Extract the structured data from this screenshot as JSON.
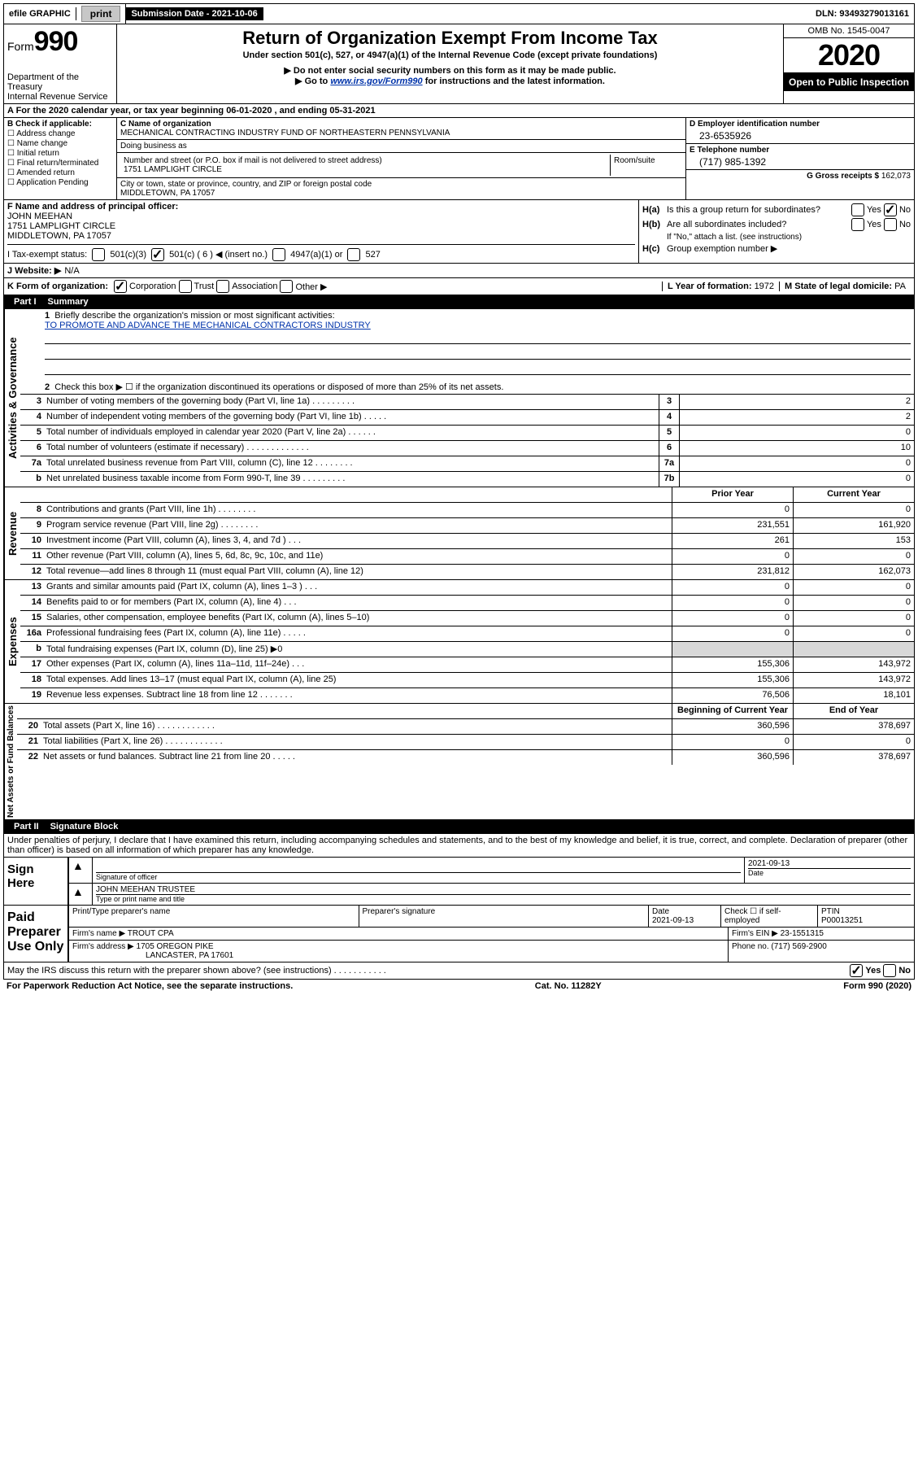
{
  "topbar": {
    "efile_label": "efile GRAPHIC",
    "print_btn": "print",
    "sub_date_label": "Submission Date - 2021-10-06",
    "dln": "DLN: 93493279013161"
  },
  "header": {
    "form_label": "Form",
    "form_num": "990",
    "dept": "Department of the Treasury",
    "irs": "Internal Revenue Service",
    "title": "Return of Organization Exempt From Income Tax",
    "subtitle": "Under section 501(c), 527, or 4947(a)(1) of the Internal Revenue Code (except private foundations)",
    "note1": "▶ Do not enter social security numbers on this form as it may be made public.",
    "note2_pre": "▶ Go to ",
    "note2_link": "www.irs.gov/Form990",
    "note2_post": " for instructions and the latest information.",
    "omb": "OMB No. 1545-0047",
    "year": "2020",
    "open": "Open to Public Inspection"
  },
  "row_a": "A For the 2020 calendar year, or tax year beginning 06-01-2020    , and ending 05-31-2021",
  "b": {
    "label": "B Check if applicable:",
    "addr_change": "Address change",
    "name_change": "Name change",
    "initial": "Initial return",
    "final": "Final return/terminated",
    "amended": "Amended return",
    "app_pending": "Application Pending"
  },
  "c": {
    "name_lbl": "C Name of organization",
    "name": "MECHANICAL CONTRACTING INDUSTRY FUND OF NORTHEASTERN PENNSYLVANIA",
    "dba_lbl": "Doing business as",
    "street_lbl": "Number and street (or P.O. box if mail is not delivered to street address)",
    "room_lbl": "Room/suite",
    "street": "1751 LAMPLIGHT CIRCLE",
    "city_lbl": "City or town, state or province, country, and ZIP or foreign postal code",
    "city": "MIDDLETOWN, PA  17057"
  },
  "d": {
    "ein_lbl": "D Employer identification number",
    "ein": "23-6535926",
    "tel_lbl": "E Telephone number",
    "tel": "(717) 985-1392",
    "gross_lbl": "G Gross receipts $",
    "gross": "162,073"
  },
  "f": {
    "lbl": "F  Name and address of principal officer:",
    "name": "JOHN MEEHAN",
    "street": "1751 LAMPLIGHT CIRCLE",
    "city": "MIDDLETOWN, PA  17057"
  },
  "h": {
    "ha_lbl": "H(a)",
    "ha_txt": "Is this a group return for subordinates?",
    "hb_lbl": "H(b)",
    "hb_txt": "Are all subordinates included?",
    "hb_note": "If \"No,\" attach a list. (see instructions)",
    "hc_lbl": "H(c)",
    "hc_txt": "Group exemption number ▶",
    "yes": "Yes",
    "no": "No"
  },
  "i": {
    "lbl": "I  Tax-exempt status:",
    "c3": "501(c)(3)",
    "c": "501(c) ( 6 ) ◀ (insert no.)",
    "a1": "4947(a)(1) or",
    "s527": "527"
  },
  "j": {
    "lbl": "J  Website: ▶",
    "val": "N/A"
  },
  "k": {
    "lbl": "K Form of organization:",
    "corp": "Corporation",
    "trust": "Trust",
    "assoc": "Association",
    "other": "Other ▶"
  },
  "l": {
    "lbl": "L Year of formation:",
    "val": "1972"
  },
  "m": {
    "lbl": "M State of legal domicile:",
    "val": "PA"
  },
  "part1": {
    "title": "Part I",
    "subtitle": "Summary",
    "side_gov": "Activities & Governance",
    "side_rev": "Revenue",
    "side_exp": "Expenses",
    "side_net": "Net Assets or Fund Balances",
    "q1": "Briefly describe the organization's mission or most significant activities:",
    "q1_val": "TO PROMOTE AND ADVANCE THE MECHANICAL CONTRACTORS INDUSTRY",
    "q2": "Check this box ▶ ☐  if the organization discontinued its operations or disposed of more than 25% of its net assets.",
    "rows": [
      {
        "n": "3",
        "d": "Number of voting members of the governing body (Part VI, line 1a)  .    .    .    .    .    .    .    .    .",
        "b": "3",
        "v": "2"
      },
      {
        "n": "4",
        "d": "Number of independent voting members of the governing body (Part VI, line 1b)  .    .    .    .    .",
        "b": "4",
        "v": "2"
      },
      {
        "n": "5",
        "d": "Total number of individuals employed in calendar year 2020 (Part V, line 2a)  .    .    .    .    .    .",
        "b": "5",
        "v": "0"
      },
      {
        "n": "6",
        "d": "Total number of volunteers (estimate if necessary)  .    .    .    .    .    .    .    .    .    .    .    .    .",
        "b": "6",
        "v": "10"
      },
      {
        "n": "7a",
        "d": "Total unrelated business revenue from Part VIII, column (C), line 12  .    .    .    .    .    .    .    .",
        "b": "7a",
        "v": "0"
      },
      {
        "n": "b",
        "d": "Net unrelated business taxable income from Form 990-T, line 39  .    .    .    .    .    .    .    .    .",
        "b": "7b",
        "v": "0"
      }
    ],
    "hdr_prior": "Prior Year",
    "hdr_curr": "Current Year",
    "dual_rows": [
      {
        "n": "8",
        "d": "Contributions and grants (Part VIII, line 1h)  .    .    .    .    .    .    .    .",
        "p": "0",
        "c": "0"
      },
      {
        "n": "9",
        "d": "Program service revenue (Part VIII, line 2g)  .    .    .    .    .    .    .    .",
        "p": "231,551",
        "c": "161,920"
      },
      {
        "n": "10",
        "d": "Investment income (Part VIII, column (A), lines 3, 4, and 7d )  .    .    .",
        "p": "261",
        "c": "153"
      },
      {
        "n": "11",
        "d": "Other revenue (Part VIII, column (A), lines 5, 6d, 8c, 9c, 10c, and 11e)",
        "p": "0",
        "c": "0"
      },
      {
        "n": "12",
        "d": "Total revenue—add lines 8 through 11 (must equal Part VIII, column (A), line 12)",
        "p": "231,812",
        "c": "162,073"
      },
      {
        "n": "13",
        "d": "Grants and similar amounts paid (Part IX, column (A), lines 1–3 )  .    .    .",
        "p": "0",
        "c": "0"
      },
      {
        "n": "14",
        "d": "Benefits paid to or for members (Part IX, column (A), line 4)  .    .    .",
        "p": "0",
        "c": "0"
      },
      {
        "n": "15",
        "d": "Salaries, other compensation, employee benefits (Part IX, column (A), lines 5–10)",
        "p": "0",
        "c": "0"
      },
      {
        "n": "16a",
        "d": "Professional fundraising fees (Part IX, column (A), line 11e)  .    .    .    .    .",
        "p": "0",
        "c": "0"
      },
      {
        "n": "b",
        "d": "Total fundraising expenses (Part IX, column (D), line 25) ▶0",
        "p": "",
        "c": "",
        "shade": true
      },
      {
        "n": "17",
        "d": "Other expenses (Part IX, column (A), lines 11a–11d, 11f–24e)  .    .    .",
        "p": "155,306",
        "c": "143,972"
      },
      {
        "n": "18",
        "d": "Total expenses. Add lines 13–17 (must equal Part IX, column (A), line 25)",
        "p": "155,306",
        "c": "143,972"
      },
      {
        "n": "19",
        "d": "Revenue less expenses. Subtract line 18 from line 12  .    .    .    .    .    .    .",
        "p": "76,506",
        "c": "18,101"
      }
    ],
    "hdr_beg": "Beginning of Current Year",
    "hdr_end": "End of Year",
    "net_rows": [
      {
        "n": "20",
        "d": "Total assets (Part X, line 16)  .    .    .    .    .    .    .    .    .    .    .    .",
        "p": "360,596",
        "c": "378,697"
      },
      {
        "n": "21",
        "d": "Total liabilities (Part X, line 26)  .    .    .    .    .    .    .    .    .    .    .    .",
        "p": "0",
        "c": "0"
      },
      {
        "n": "22",
        "d": "Net assets or fund balances. Subtract line 21 from line 20  .    .    .    .    .",
        "p": "360,596",
        "c": "378,697"
      }
    ]
  },
  "part2": {
    "title": "Part II",
    "subtitle": "Signature Block",
    "intro": "Under penalties of perjury, I declare that I have examined this return, including accompanying schedules and statements, and to the best of my knowledge and belief, it is true, correct, and complete. Declaration of preparer (other than officer) is based on all information of which preparer has any knowledge.",
    "sign_here": "Sign Here",
    "sig_officer": "Signature of officer",
    "date_lbl": "Date",
    "sig_date": "2021-09-13",
    "name_title": "JOHN MEEHAN TRUSTEE",
    "type_name": "Type or print name and title",
    "paid_prep": "Paid Preparer Use Only",
    "prep_name_lbl": "Print/Type preparer's name",
    "prep_sig_lbl": "Preparer's signature",
    "prep_date_lbl": "Date",
    "prep_date": "2021-09-13",
    "self_emp": "Check ☐ if self-employed",
    "ptin_lbl": "PTIN",
    "ptin": "P00013251",
    "firm_name_lbl": "Firm's name    ▶",
    "firm_name": "TROUT CPA",
    "firm_ein_lbl": "Firm's EIN ▶",
    "firm_ein": "23-1551315",
    "firm_addr_lbl": "Firm's address ▶",
    "firm_addr": "1705 OREGON PIKE",
    "firm_city": "LANCASTER, PA  17601",
    "phone_lbl": "Phone no.",
    "phone": "(717) 569-2900"
  },
  "discuss": {
    "txt": "May the IRS discuss this return with the preparer shown above? (see instructions)   .    .    .    .    .    .    .    .    .    .    .",
    "yes": "Yes",
    "no": "No"
  },
  "footer": {
    "left": "For Paperwork Reduction Act Notice, see the separate instructions.",
    "mid": "Cat. No. 11282Y",
    "right": "Form 990 (2020)"
  },
  "colors": {
    "link": "#0033aa",
    "black": "#000000",
    "shade": "#d8d8d8"
  }
}
